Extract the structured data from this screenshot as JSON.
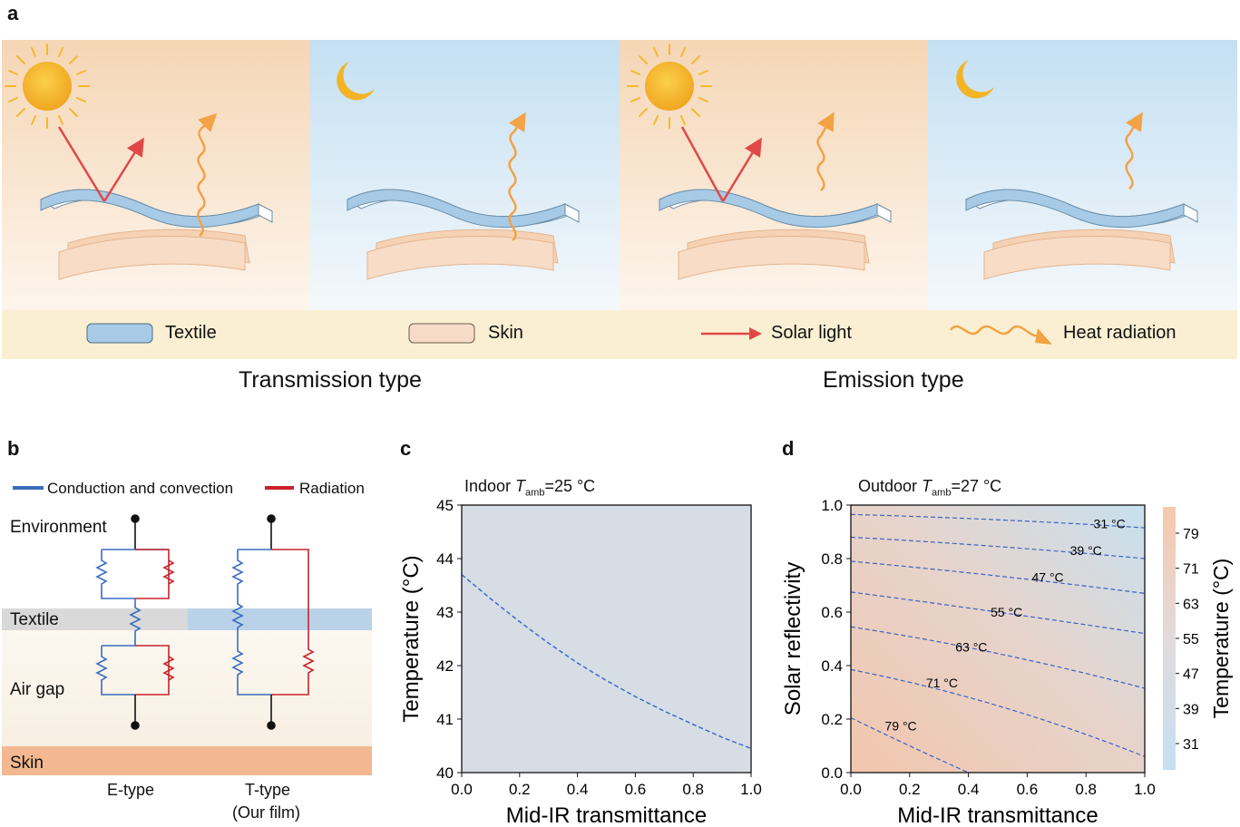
{
  "panel_a": {
    "letter": "a",
    "legend": {
      "textile": "Textile",
      "skin": "Skin",
      "solar": "Solar light",
      "heat": "Heat radiation"
    },
    "types": {
      "left": "Transmission type",
      "right": "Emission type"
    },
    "colors": {
      "day_bg": "#f6dcc0",
      "night_bg": "#c8e2f3",
      "legend_bg": "#faefd2",
      "textile": "#a7cbe6",
      "skin": "#f6d7c0",
      "solar": "#e04848",
      "heat": "#f3a245",
      "sun": "#f5b82e"
    }
  },
  "panel_b": {
    "letter": "b",
    "legend": {
      "conduction": "Conduction and convection",
      "radiation": "Radiation"
    },
    "layers": {
      "environment": "Environment",
      "textile": "Textile",
      "air_gap": "Air gap",
      "skin": "Skin"
    },
    "circuits": {
      "e_type": "E-type",
      "t_type_line1": "T-type",
      "t_type_line2": "(Our film)"
    },
    "colors": {
      "conduction": "#3b6dbf",
      "radiation": "#c8232c",
      "skin": "#f3b891",
      "textile_grey": "#d9d9d9",
      "textile_blue": "#b9d2e8"
    }
  },
  "panel_c": {
    "letter": "c",
    "title_prefix": "Indoor ",
    "title_var": "T",
    "title_sub": "amb",
    "title_suffix": "=25 °C"
  },
  "panel_d": {
    "letter": "d",
    "title_prefix": "Outdoor ",
    "title_var": "T",
    "title_sub": "amb",
    "title_suffix": "=27 °C",
    "colorbar_label": "Temperature (°C)",
    "colorbar_ticks": [
      "79",
      "71",
      "63",
      "55",
      "47",
      "39",
      "31"
    ],
    "contour_labels": [
      "31 °C",
      "39 °C",
      "47 °C",
      "55 °C",
      "63 °C",
      "71 °C",
      "79 °C"
    ]
  },
  "chart_data": [
    {
      "type": "line",
      "panel": "c",
      "title": "Indoor T_amb=25 °C",
      "xlabel": "Mid-IR transmittance",
      "ylabel": "Temperature (°C)",
      "xlim": [
        0.0,
        1.0
      ],
      "ylim": [
        40,
        45
      ],
      "xticks": [
        "0.0",
        "0.2",
        "0.4",
        "0.6",
        "0.8",
        "1.0"
      ],
      "yticks": [
        "40",
        "41",
        "42",
        "43",
        "44",
        "45"
      ],
      "series": [
        {
          "name": "Temperature",
          "x": [
            0.0,
            0.1,
            0.2,
            0.3,
            0.4,
            0.5,
            0.6,
            0.7,
            0.8,
            0.9,
            1.0
          ],
          "y": [
            43.7,
            43.25,
            42.82,
            42.42,
            42.05,
            41.72,
            41.42,
            41.15,
            40.9,
            40.66,
            40.45
          ]
        }
      ],
      "background": "#d6dde5",
      "line_color": "#3b62c4"
    },
    {
      "type": "contour",
      "panel": "d",
      "title": "Outdoor T_amb=27 °C",
      "xlabel": "Mid-IR transmittance",
      "ylabel": "Solar reflectivity",
      "xlim": [
        0.0,
        1.0
      ],
      "ylim": [
        0.0,
        1.0
      ],
      "xticks": [
        "0.0",
        "0.2",
        "0.4",
        "0.6",
        "0.8",
        "1.0"
      ],
      "yticks": [
        "0.0",
        "0.2",
        "0.4",
        "0.6",
        "0.8",
        "1.0"
      ],
      "colorbar_range": [
        25,
        85
      ],
      "contours": [
        {
          "level": 31,
          "x": [
            0.0,
            0.5,
            1.0
          ],
          "y": [
            0.965,
            0.945,
            0.915
          ]
        },
        {
          "level": 39,
          "x": [
            0.0,
            0.5,
            1.0
          ],
          "y": [
            0.88,
            0.845,
            0.8
          ]
        },
        {
          "level": 47,
          "x": [
            0.0,
            0.5,
            1.0
          ],
          "y": [
            0.79,
            0.735,
            0.67
          ]
        },
        {
          "level": 55,
          "x": [
            0.0,
            0.5,
            1.0
          ],
          "y": [
            0.675,
            0.6,
            0.52
          ]
        },
        {
          "level": 63,
          "x": [
            0.0,
            0.5,
            1.0
          ],
          "y": [
            0.545,
            0.445,
            0.315
          ]
        },
        {
          "level": 71,
          "x": [
            0.0,
            0.5,
            1.0
          ],
          "y": [
            0.385,
            0.25,
            0.06
          ]
        },
        {
          "level": 79,
          "x": [
            0.0,
            0.2,
            0.4
          ],
          "y": [
            0.205,
            0.1,
            0.0
          ]
        }
      ],
      "contour_label_positions": [
        {
          "level": 31,
          "x": 0.88,
          "y": 0.93
        },
        {
          "level": 39,
          "x": 0.8,
          "y": 0.83
        },
        {
          "level": 47,
          "x": 0.67,
          "y": 0.73
        },
        {
          "level": 55,
          "x": 0.53,
          "y": 0.6
        },
        {
          "level": 63,
          "x": 0.41,
          "y": 0.47
        },
        {
          "level": 71,
          "x": 0.31,
          "y": 0.335
        },
        {
          "level": 79,
          "x": 0.17,
          "y": 0.175
        }
      ],
      "line_color": "#3b62c4"
    }
  ]
}
